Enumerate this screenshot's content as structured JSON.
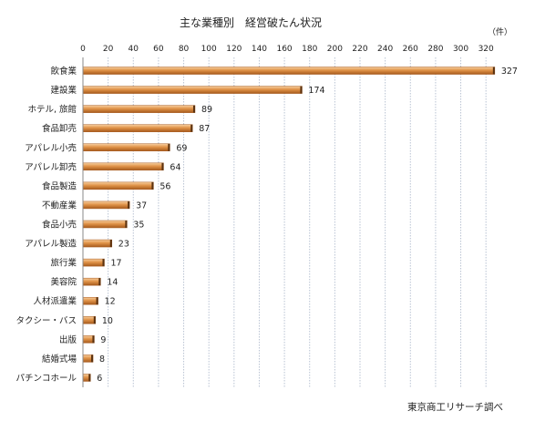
{
  "chart_data": {
    "type": "bar",
    "orientation": "horizontal",
    "title": "主な業種別　経営破たん状況",
    "unit_label": "（件）",
    "source": "東京商工リサーチ調べ",
    "categories": [
      "飲食業",
      "建設業",
      "ホテル, 旅館",
      "食品卸売",
      "アパレル小売",
      "アパレル卸売",
      "食品製造",
      "不動産業",
      "食品小売",
      "アパレル製造",
      "旅行業",
      "美容院",
      "人材派遣業",
      "タクシー・バス",
      "出版",
      "結婚式場",
      "パチンコホール"
    ],
    "values": [
      327,
      174,
      89,
      87,
      69,
      64,
      56,
      37,
      35,
      23,
      17,
      14,
      12,
      10,
      9,
      8,
      6
    ],
    "xlim": [
      0,
      330
    ],
    "xticks": [
      0,
      20,
      40,
      60,
      80,
      100,
      120,
      140,
      160,
      180,
      200,
      220,
      240,
      260,
      280,
      300,
      320
    ],
    "axis_position": "top",
    "grid": true,
    "colors": {
      "bar": "#d98a3c",
      "bar_dark": "#a85a1e",
      "bar_light": "#f5c592",
      "grid": "#b9c3d3",
      "text": "#222222"
    }
  }
}
